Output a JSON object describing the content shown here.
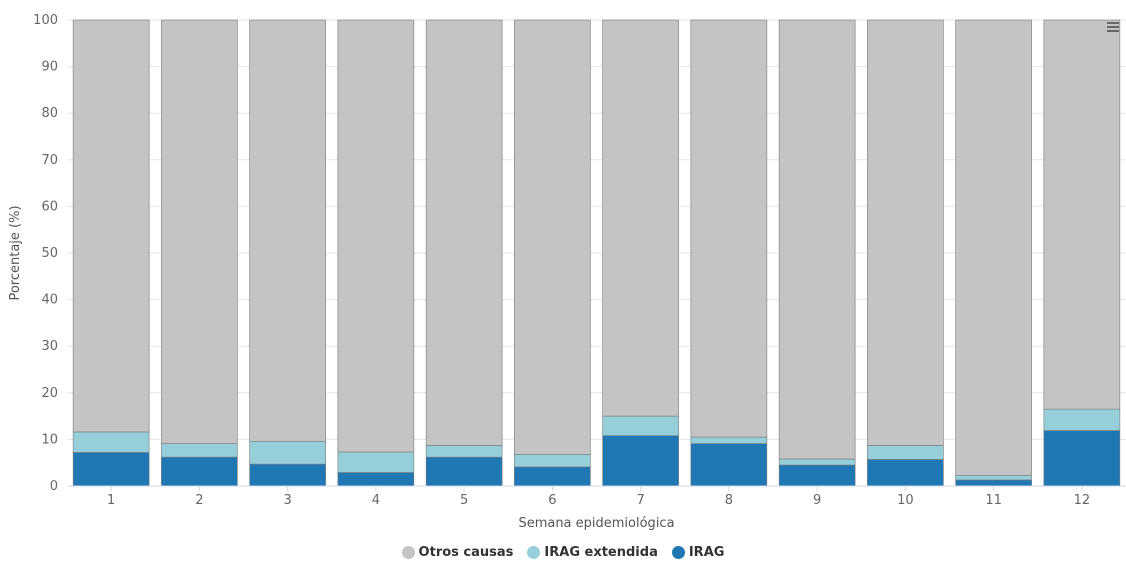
{
  "chart_data": {
    "type": "bar",
    "stacked": true,
    "categories": [
      "1",
      "2",
      "3",
      "4",
      "5",
      "6",
      "7",
      "8",
      "9",
      "10",
      "11",
      "12"
    ],
    "series": [
      {
        "name": "IRAG",
        "color": "#1f77b4",
        "values": [
          7.2,
          6.2,
          4.7,
          2.9,
          6.2,
          4.1,
          10.8,
          9.1,
          4.5,
          5.7,
          1.3,
          11.9
        ]
      },
      {
        "name": "IRAG extendida",
        "color": "#96cfda",
        "values": [
          4.4,
          2.9,
          4.9,
          4.4,
          2.5,
          2.7,
          4.2,
          1.4,
          1.3,
          3.0,
          1.0,
          4.6
        ]
      },
      {
        "name": "Otros causas",
        "color": "#c4c4c4",
        "values": [
          88.4,
          90.9,
          90.4,
          92.7,
          91.3,
          93.2,
          85.0,
          89.5,
          94.2,
          91.3,
          97.7,
          83.5
        ]
      }
    ],
    "legend_order": [
      "Otros causas",
      "IRAG extendida",
      "IRAG"
    ],
    "xlabel": "Semana epidemiológica",
    "ylabel": "Porcentaje (%)",
    "ylim": [
      0,
      100
    ],
    "yticks": [
      0,
      10,
      20,
      30,
      40,
      50,
      60,
      70,
      80,
      90,
      100
    ],
    "grid": true,
    "legend_position": "bottom-center"
  },
  "menu_icon": "hamburger-menu-icon"
}
